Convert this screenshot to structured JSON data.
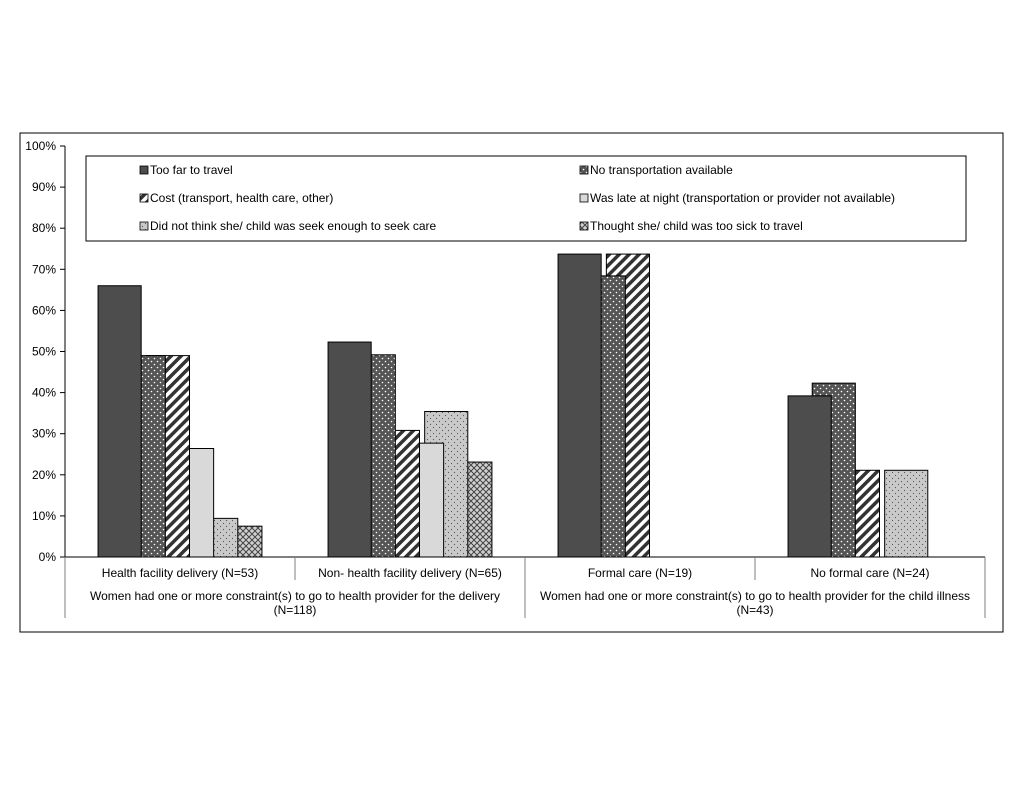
{
  "chart_data": {
    "type": "bar",
    "y_ticks": [
      "0%",
      "10%",
      "20%",
      "30%",
      "40%",
      "50%",
      "60%",
      "70%",
      "80%",
      "90%",
      "100%"
    ],
    "ylim": [
      0,
      100
    ],
    "grid": false,
    "legend_position": "top",
    "categories": [
      "Health facility delivery (N=53)",
      "Non- health facility delivery (N=65)",
      "Formal care (N=19)",
      "No formal care (N=24)"
    ],
    "groups": [
      {
        "label_line1": "Women had one or more constraint(s) to go to health provider for the delivery",
        "label_line2": "(N=118)"
      },
      {
        "label_line1": "Women had one or more constraint(s) to go to health provider for the child illness",
        "label_line2": "(N=43)"
      }
    ],
    "series": [
      {
        "name": "Too far to travel",
        "pattern": "solid-dark",
        "values": [
          66,
          52.3,
          73.7,
          39.2
        ]
      },
      {
        "name": "No transportation available",
        "pattern": "dots-dark",
        "values": [
          49,
          49.2,
          68.4,
          42.3
        ]
      },
      {
        "name": "Cost (transport, health care, other)",
        "pattern": "diagonal-stripes",
        "values": [
          49,
          30.8,
          73.7,
          21.1
        ]
      },
      {
        "name": "Was late at night (transportation or provider not available)",
        "pattern": "solid-light",
        "values": [
          26.4,
          27.7,
          0,
          0
        ]
      },
      {
        "name": "Did not think she/ child was seek enough to seek care",
        "pattern": "dots-light",
        "values": [
          9.4,
          35.4,
          0,
          21.1
        ]
      },
      {
        "name": "Thought she/ child was too sick to travel",
        "pattern": "crosshatch",
        "values": [
          7.5,
          23.1,
          0,
          0
        ]
      }
    ]
  }
}
